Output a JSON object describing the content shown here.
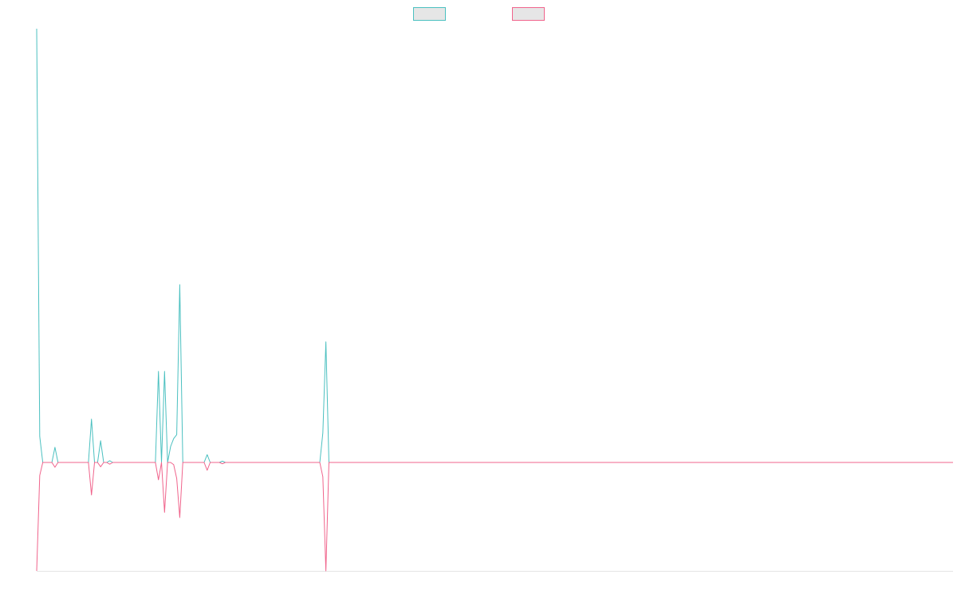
{
  "chart_data": {
    "type": "line",
    "ylim": [
      -25,
      100
    ],
    "series": [
      {
        "color": "#4bc0c0",
        "background": "#e6e6e6",
        "values": [
          100,
          6,
          0,
          0,
          0,
          0,
          3.5,
          0,
          0,
          0,
          0,
          0,
          0,
          0,
          0,
          0,
          0,
          0,
          10,
          0,
          0,
          5,
          0,
          0,
          0.4,
          0,
          0,
          0,
          0,
          0,
          0,
          0,
          0,
          0,
          0,
          0,
          0,
          0,
          0,
          0,
          21,
          0,
          21,
          0,
          3.7,
          5.5,
          6.4,
          41,
          0,
          0,
          0,
          0,
          0,
          0,
          0,
          0,
          1.8,
          0,
          0,
          0,
          0,
          0.3,
          0,
          0,
          0,
          0,
          0,
          0,
          0,
          0,
          0,
          0,
          0,
          0,
          0,
          0,
          0,
          0,
          0,
          0,
          0,
          0,
          0,
          0,
          0,
          0,
          0,
          0,
          0,
          0,
          0,
          0,
          0,
          0,
          6.8,
          27.8,
          0,
          0,
          0,
          0,
          0,
          0,
          0,
          0,
          0,
          0,
          0,
          0,
          0,
          0,
          0,
          0,
          0,
          0,
          0,
          0,
          0,
          0,
          0,
          0,
          0,
          0,
          0,
          0,
          0,
          0,
          0,
          0,
          0,
          0,
          0,
          0,
          0,
          0,
          0,
          0,
          0,
          0,
          0,
          0,
          0,
          0,
          0,
          0,
          0,
          0,
          0,
          0,
          0,
          0,
          0,
          0,
          0,
          0,
          0,
          0,
          0,
          0,
          0,
          0,
          0,
          0,
          0,
          0,
          0,
          0,
          0,
          0,
          0,
          0,
          0,
          0,
          0,
          0,
          0,
          0,
          0,
          0,
          0,
          0,
          0,
          0,
          0,
          0,
          0,
          0,
          0,
          0,
          0,
          0,
          0,
          0,
          0,
          0,
          0,
          0,
          0,
          0,
          0,
          0,
          0,
          0,
          0,
          0,
          0,
          0,
          0,
          0,
          0,
          0,
          0,
          0,
          0,
          0,
          0,
          0,
          0,
          0,
          0,
          0,
          0,
          0,
          0,
          0,
          0,
          0,
          0,
          0,
          0,
          0,
          0,
          0,
          0,
          0,
          0,
          0,
          0,
          0,
          0,
          0,
          0,
          0,
          0,
          0,
          0,
          0,
          0,
          0,
          0,
          0,
          0,
          0,
          0,
          0,
          0,
          0,
          0,
          0,
          0,
          0,
          0,
          0,
          0,
          0,
          0,
          0,
          0,
          0,
          0,
          0,
          0,
          0,
          0,
          0,
          0,
          0,
          0,
          0,
          0,
          0,
          0,
          0,
          0,
          0,
          0,
          0,
          0,
          0,
          0,
          0,
          0,
          0,
          0,
          0,
          0,
          0,
          0,
          0,
          0,
          0,
          0,
          0
        ]
      },
      {
        "color": "#f0648c",
        "background": "#e6e6e6",
        "values": [
          -25,
          -3,
          0,
          0,
          0,
          0,
          -1.1,
          0,
          0,
          0,
          0,
          0,
          0,
          0,
          0,
          0,
          0,
          0,
          -7.5,
          0,
          0,
          -1,
          0,
          0,
          -0.4,
          0,
          0,
          0,
          0,
          0,
          0,
          0,
          0,
          0,
          0,
          0,
          0,
          0,
          0,
          0,
          -4,
          0,
          -11.5,
          0,
          0,
          -0.5,
          -3.7,
          -12.7,
          0,
          0,
          0,
          0,
          0,
          0,
          0,
          0,
          -1.8,
          0,
          0,
          0,
          0,
          -0.3,
          0,
          0,
          0,
          0,
          0,
          0,
          0,
          0,
          0,
          0,
          0,
          0,
          0,
          0,
          0,
          0,
          0,
          0,
          0,
          0,
          0,
          0,
          0,
          0,
          0,
          0,
          0,
          0,
          0,
          0,
          0,
          0,
          -3.3,
          -25,
          0,
          0,
          0,
          0,
          0,
          0,
          0,
          0,
          0,
          0,
          0,
          0,
          0,
          0,
          0,
          0,
          0,
          0,
          0,
          0,
          0,
          0,
          0,
          0,
          0,
          0,
          0,
          0,
          0,
          0,
          0,
          0,
          0,
          0,
          0,
          0,
          0,
          0,
          0,
          0,
          0,
          0,
          0,
          0,
          0,
          0,
          0,
          0,
          0,
          0,
          0,
          0,
          0,
          0,
          0,
          0,
          0,
          0,
          0,
          0,
          0,
          0,
          0,
          0,
          0,
          0,
          0,
          0,
          0,
          0,
          0,
          0,
          0,
          0,
          0,
          0,
          0,
          0,
          0,
          0,
          0,
          0,
          0,
          0,
          0,
          0,
          0,
          0,
          0,
          0,
          0,
          0,
          0,
          0,
          0,
          0,
          0,
          0,
          0,
          0,
          0,
          0,
          0,
          0,
          0,
          0,
          0,
          0,
          0,
          0,
          0,
          0,
          0,
          0,
          0,
          0,
          0,
          0,
          0,
          0,
          0,
          0,
          0,
          0,
          0,
          0,
          0,
          0,
          0,
          0,
          0,
          0,
          0,
          0,
          0,
          0,
          0,
          0,
          0,
          0,
          0,
          0,
          0,
          0,
          0,
          0,
          0,
          0,
          0,
          0,
          0,
          0,
          0,
          0,
          0,
          0,
          0,
          0,
          0,
          0,
          0,
          0,
          0,
          0,
          0,
          0,
          0,
          0,
          0,
          0,
          0,
          0,
          0,
          0,
          0,
          0,
          0,
          0,
          0,
          0,
          0,
          0,
          0,
          0,
          0,
          0,
          0,
          0,
          0,
          0,
          0,
          0,
          0,
          0,
          0,
          0,
          0,
          0,
          0,
          0,
          0,
          0,
          0,
          0,
          0,
          0
        ]
      }
    ]
  }
}
